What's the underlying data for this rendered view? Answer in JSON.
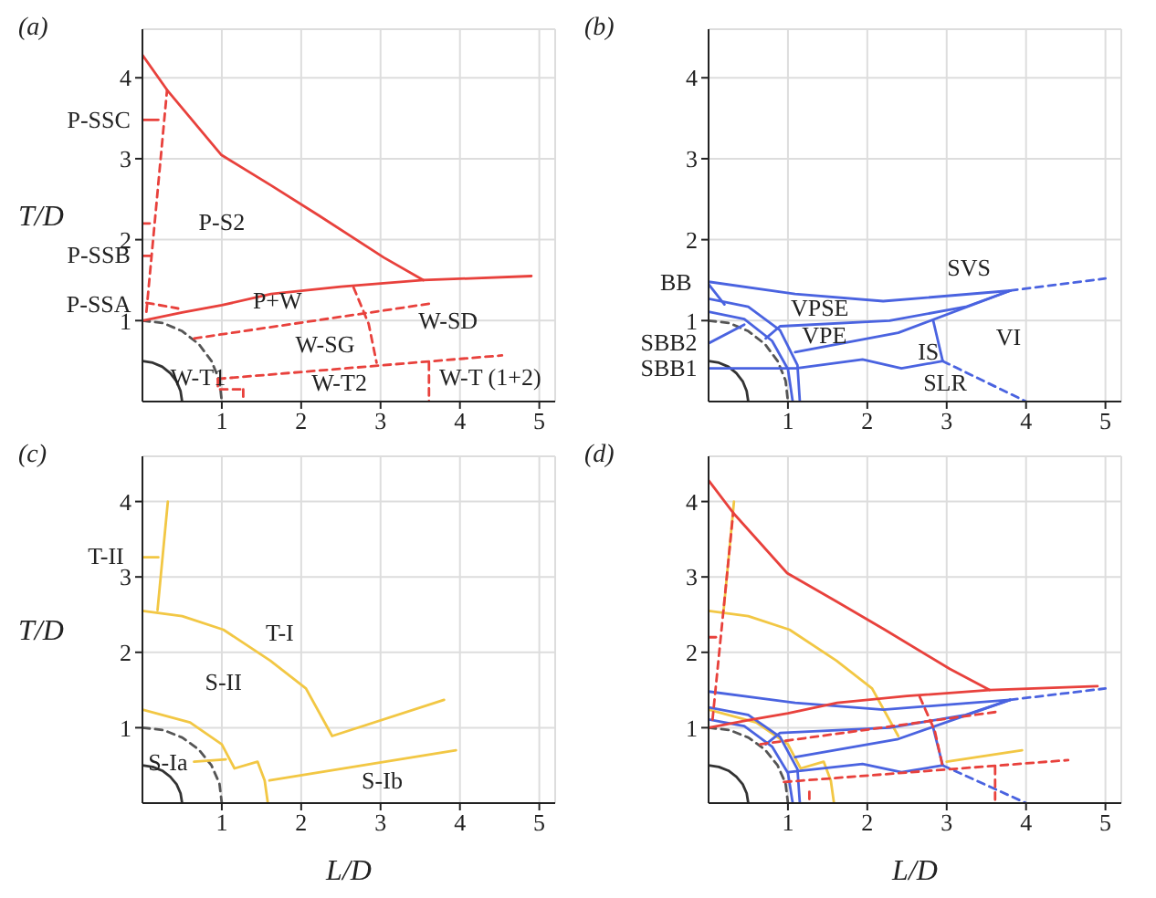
{
  "chart_data": [
    {
      "type": "line",
      "title": "(a)",
      "ylabel": "T/D",
      "xlim": [
        0,
        5.2
      ],
      "ylim": [
        0,
        4.6
      ],
      "xticks": [
        1,
        2,
        3,
        4,
        5
      ],
      "yticks": [
        1,
        2,
        3,
        4
      ],
      "grid": true,
      "series": [
        {
          "color": "#333333",
          "x": [
            0,
            0.13,
            0.25,
            0.35,
            0.43,
            0.48,
            0.5
          ],
          "values": [
            0.5,
            0.48,
            0.43,
            0.35,
            0.25,
            0.13,
            0
          ]
        },
        {
          "color": "#555555",
          "line_style": "dashed",
          "x": [
            0,
            0.26,
            0.5,
            0.71,
            0.87,
            0.97,
            1
          ],
          "values": [
            1,
            0.97,
            0.87,
            0.71,
            0.5,
            0.26,
            0
          ]
        },
        {
          "color": "#e8413c",
          "x": [
            0,
            0.31,
            0.99,
            1.62,
            2.22,
            3.04,
            3.54
          ],
          "values": [
            4.28,
            3.85,
            3.05,
            2.67,
            2.3,
            1.78,
            1.5
          ]
        },
        {
          "color": "#e8413c",
          "x": [
            0,
            0.5,
            1,
            1.62,
            2.5,
            3.54,
            4.9
          ],
          "values": [
            1,
            1.1,
            1.19,
            1.33,
            1.42,
            1.5,
            1.55
          ]
        },
        {
          "color": "#e8413c",
          "line_style": "dashed",
          "x": [
            0.05,
            0.31
          ],
          "values": [
            1.11,
            3.85
          ]
        },
        {
          "color": "#e8413c",
          "line_style": "dashed",
          "x": [
            0,
            0.15
          ],
          "values": [
            2.2,
            2.2
          ]
        },
        {
          "color": "#e8413c",
          "x": [
            0,
            0.2
          ],
          "values": [
            3.48,
            3.48
          ]
        },
        {
          "color": "#e8413c",
          "x": [
            0,
            0.1
          ],
          "values": [
            1.8,
            1.8
          ]
        },
        {
          "color": "#e8413c",
          "line_style": "dashed",
          "x": [
            0.05,
            0.45
          ],
          "values": [
            1.22,
            1.15
          ]
        },
        {
          "color": "#e8413c",
          "line_style": "dashed",
          "x": [
            0.65,
            3.63
          ],
          "values": [
            0.78,
            1.21
          ]
        },
        {
          "color": "#e8413c",
          "line_style": "dashed",
          "x": [
            2.66,
            2.85,
            2.95
          ],
          "values": [
            1.41,
            0.96,
            0.48
          ]
        },
        {
          "color": "#e8413c",
          "line_style": "dashed",
          "x": [
            0.95,
            4.53
          ],
          "values": [
            0.28,
            0.57
          ]
        },
        {
          "color": "#e8413c",
          "line_style": "dashed",
          "x": [
            3.61,
            3.61
          ],
          "values": [
            0.48,
            0
          ]
        },
        {
          "color": "#e8413c",
          "line_style": "dashed",
          "x": [
            0.95,
            0.95,
            1.25
          ],
          "values": [
            0.28,
            0.15,
            0.15
          ]
        },
        {
          "color": "#e8413c",
          "line_style": "dashed",
          "x": [
            1.27,
            1.27
          ],
          "values": [
            0.15,
            0
          ]
        }
      ],
      "annotations": [
        "P-SSC",
        "P-SSB",
        "P-SSA",
        "P-S2",
        "P+W",
        "W-SG",
        "W-SD",
        "W-T1",
        "W-T2",
        "W-T (1+2)"
      ]
    },
    {
      "type": "line",
      "title": "(b)",
      "xlim": [
        0,
        5.2
      ],
      "ylim": [
        0,
        4.6
      ],
      "xticks": [
        1,
        2,
        3,
        4,
        5
      ],
      "yticks": [
        1,
        2,
        3,
        4
      ],
      "grid": true,
      "series": [
        {
          "color": "#333333",
          "x": [
            0,
            0.13,
            0.25,
            0.35,
            0.43,
            0.48,
            0.5
          ],
          "values": [
            0.5,
            0.48,
            0.43,
            0.35,
            0.25,
            0.13,
            0
          ]
        },
        {
          "color": "#555555",
          "line_style": "dashed",
          "x": [
            0,
            0.26,
            0.5,
            0.71,
            0.87,
            0.97,
            1
          ],
          "values": [
            1,
            0.97,
            0.87,
            0.71,
            0.5,
            0.26,
            0
          ]
        },
        {
          "color": "#4a63e0",
          "x": [
            0,
            0.45,
            0.8,
            1,
            1.06
          ],
          "values": [
            1.11,
            1.02,
            0.75,
            0.4,
            0
          ]
        },
        {
          "color": "#4a63e0",
          "x": [
            0,
            0.5,
            0.9,
            1.12,
            1.15
          ],
          "values": [
            1.27,
            1.17,
            0.88,
            0.45,
            0
          ]
        },
        {
          "color": "#4a63e0",
          "x": [
            0,
            1.09,
            2.2,
            3.8
          ],
          "values": [
            1.48,
            1.33,
            1.24,
            1.37
          ]
        },
        {
          "color": "#4a63e0",
          "x": [
            0,
            0.2
          ],
          "values": [
            1.45,
            1.2
          ]
        },
        {
          "color": "#4a63e0",
          "x": [
            0,
            0.45
          ],
          "values": [
            0.72,
            0.95
          ]
        },
        {
          "color": "#4a63e0",
          "x": [
            0.72,
            0.9,
            2.28,
            3.24,
            3.8
          ],
          "values": [
            0.78,
            0.93,
            1,
            1.17,
            1.37
          ]
        },
        {
          "color": "#4a63e0",
          "x": [
            1.09,
            2.39,
            3.8
          ],
          "values": [
            0.61,
            0.85,
            1.37
          ]
        },
        {
          "color": "#4a63e0",
          "x": [
            2.83,
            2.95
          ],
          "values": [
            1,
            0.5
          ]
        },
        {
          "color": "#4a63e0",
          "x": [
            0,
            1.1,
            1.94,
            2.43,
            2.95
          ],
          "values": [
            0.41,
            0.41,
            0.52,
            0.41,
            0.5
          ]
        },
        {
          "color": "#4a63e0",
          "line_style": "dashed",
          "x": [
            3.8,
            5
          ],
          "values": [
            1.37,
            1.52
          ]
        },
        {
          "color": "#4a63e0",
          "line_style": "dashed",
          "x": [
            2.95,
            4
          ],
          "values": [
            0.5,
            0
          ]
        }
      ],
      "annotations": [
        "BB",
        "SBB2",
        "SBB1",
        "SVS",
        "VPSE",
        "VPE",
        "IS",
        "VI",
        "SLR"
      ]
    },
    {
      "type": "line",
      "title": "(c)",
      "xlabel": "L/D",
      "ylabel": "T/D",
      "xlim": [
        0,
        5.2
      ],
      "ylim": [
        0,
        4.6
      ],
      "xticks": [
        1,
        2,
        3,
        4,
        5
      ],
      "yticks": [
        1,
        2,
        3,
        4
      ],
      "grid": true,
      "series": [
        {
          "color": "#333333",
          "x": [
            0,
            0.13,
            0.25,
            0.35,
            0.43,
            0.48,
            0.5
          ],
          "values": [
            0.5,
            0.48,
            0.43,
            0.35,
            0.25,
            0.13,
            0
          ]
        },
        {
          "color": "#555555",
          "line_style": "dashed",
          "x": [
            0,
            0.26,
            0.5,
            0.71,
            0.87,
            0.97,
            1
          ],
          "values": [
            1,
            0.97,
            0.87,
            0.71,
            0.5,
            0.26,
            0
          ]
        },
        {
          "color": "#f2c744",
          "x": [
            0.19,
            0.32
          ],
          "values": [
            2.56,
            4
          ]
        },
        {
          "color": "#f2c744",
          "x": [
            0,
            0.5,
            1.02,
            1.61,
            2.06,
            2.39,
            3.8
          ],
          "values": [
            2.55,
            2.48,
            2.3,
            1.89,
            1.52,
            0.89,
            1.37
          ]
        },
        {
          "color": "#f2c744",
          "x": [
            0,
            0.6,
            1,
            1.16,
            1.45,
            1.54,
            1.58
          ],
          "values": [
            1.24,
            1.07,
            0.78,
            0.46,
            0.55,
            0.3,
            0
          ]
        },
        {
          "color": "#f2c744",
          "x": [
            1.6,
            3.95
          ],
          "values": [
            0.3,
            0.7
          ]
        },
        {
          "color": "#f2c744",
          "x": [
            0.65,
            1.05
          ],
          "values": [
            0.55,
            0.58
          ]
        },
        {
          "color": "#f2c744",
          "x": [
            0,
            0.2
          ],
          "values": [
            3.26,
            3.26
          ]
        }
      ],
      "annotations": [
        "T-II",
        "T-I",
        "S-II",
        "S-Ia",
        "S-Ib"
      ]
    },
    {
      "type": "line",
      "title": "(d)",
      "xlabel": "L/D",
      "xlim": [
        0,
        5.2
      ],
      "ylim": [
        0,
        4.6
      ],
      "xticks": [
        1,
        2,
        3,
        4,
        5
      ],
      "yticks": [
        1,
        2,
        3,
        4
      ],
      "grid": true,
      "series": [
        {
          "color": "#333333",
          "x": [
            0,
            0.13,
            0.25,
            0.35,
            0.43,
            0.48,
            0.5
          ],
          "values": [
            0.5,
            0.48,
            0.43,
            0.35,
            0.25,
            0.13,
            0
          ]
        },
        {
          "color": "#555555",
          "line_style": "dashed",
          "x": [
            0,
            0.26,
            0.5,
            0.71,
            0.87,
            0.97,
            1
          ],
          "values": [
            1,
            0.97,
            0.87,
            0.71,
            0.5,
            0.26,
            0
          ]
        },
        {
          "color": "#f2c744",
          "x": [
            0.19,
            0.32
          ],
          "values": [
            2.56,
            4
          ]
        },
        {
          "color": "#f2c744",
          "x": [
            0,
            0.5,
            1.02,
            1.61,
            2.06,
            2.39
          ],
          "values": [
            2.55,
            2.48,
            2.3,
            1.89,
            1.52,
            0.89
          ]
        },
        {
          "color": "#f2c744",
          "x": [
            0,
            0.6,
            1,
            1.16,
            1.45,
            1.54,
            1.58
          ],
          "values": [
            1.24,
            1.07,
            0.78,
            0.46,
            0.55,
            0.3,
            0
          ]
        },
        {
          "color": "#f2c744",
          "x": [
            3,
            3.95
          ],
          "values": [
            0.55,
            0.7
          ]
        },
        {
          "color": "#4a63e0",
          "x": [
            0,
            0.45,
            0.8,
            1,
            1.06
          ],
          "values": [
            1.11,
            1.02,
            0.75,
            0.4,
            0
          ]
        },
        {
          "color": "#4a63e0",
          "x": [
            0,
            0.5,
            0.9,
            1.12,
            1.15
          ],
          "values": [
            1.27,
            1.17,
            0.88,
            0.45,
            0
          ]
        },
        {
          "color": "#4a63e0",
          "x": [
            0,
            1.09,
            2.2,
            3.8
          ],
          "values": [
            1.48,
            1.33,
            1.24,
            1.37
          ]
        },
        {
          "color": "#4a63e0",
          "x": [
            0.72,
            0.9,
            2.28,
            3.24,
            3.8
          ],
          "values": [
            0.78,
            0.93,
            1,
            1.17,
            1.37
          ]
        },
        {
          "color": "#4a63e0",
          "x": [
            1.09,
            2.39,
            3.8
          ],
          "values": [
            0.61,
            0.85,
            1.37
          ]
        },
        {
          "color": "#4a63e0",
          "x": [
            2.83,
            2.95
          ],
          "values": [
            1,
            0.5
          ]
        },
        {
          "color": "#4a63e0",
          "x": [
            1,
            1.94,
            2.43,
            2.95
          ],
          "values": [
            0.41,
            0.52,
            0.41,
            0.5
          ]
        },
        {
          "color": "#4a63e0",
          "line_style": "dashed",
          "x": [
            3.8,
            5
          ],
          "values": [
            1.37,
            1.52
          ]
        },
        {
          "color": "#4a63e0",
          "line_style": "dashed",
          "x": [
            2.95,
            4
          ],
          "values": [
            0.5,
            0
          ]
        },
        {
          "color": "#e8413c",
          "x": [
            0,
            0.31,
            0.99,
            1.62,
            2.22,
            3.04,
            3.54
          ],
          "values": [
            4.28,
            3.85,
            3.05,
            2.67,
            2.3,
            1.78,
            1.5
          ]
        },
        {
          "color": "#e8413c",
          "x": [
            0,
            0.5,
            1,
            1.62,
            2.5,
            3.54,
            4.9
          ],
          "values": [
            1,
            1.1,
            1.19,
            1.33,
            1.42,
            1.5,
            1.55
          ]
        },
        {
          "color": "#e8413c",
          "line_style": "dashed",
          "x": [
            0.05,
            0.31
          ],
          "values": [
            1.11,
            3.85
          ]
        },
        {
          "color": "#e8413c",
          "line_style": "dashed",
          "x": [
            0,
            0.15
          ],
          "values": [
            2.2,
            2.2
          ]
        },
        {
          "color": "#e8413c",
          "line_style": "dashed",
          "x": [
            0.65,
            3.63
          ],
          "values": [
            0.78,
            1.21
          ]
        },
        {
          "color": "#e8413c",
          "line_style": "dashed",
          "x": [
            2.66,
            2.85,
            2.95
          ],
          "values": [
            1.41,
            0.96,
            0.48
          ]
        },
        {
          "color": "#e8413c",
          "line_style": "dashed",
          "x": [
            0.95,
            4.53
          ],
          "values": [
            0.28,
            0.57
          ]
        },
        {
          "color": "#e8413c",
          "line_style": "dashed",
          "x": [
            3.61,
            3.61
          ],
          "values": [
            0.48,
            0
          ]
        },
        {
          "color": "#e8413c",
          "line_style": "dashed",
          "x": [
            1.27,
            1.27
          ],
          "values": [
            0.15,
            0
          ]
        }
      ]
    }
  ]
}
